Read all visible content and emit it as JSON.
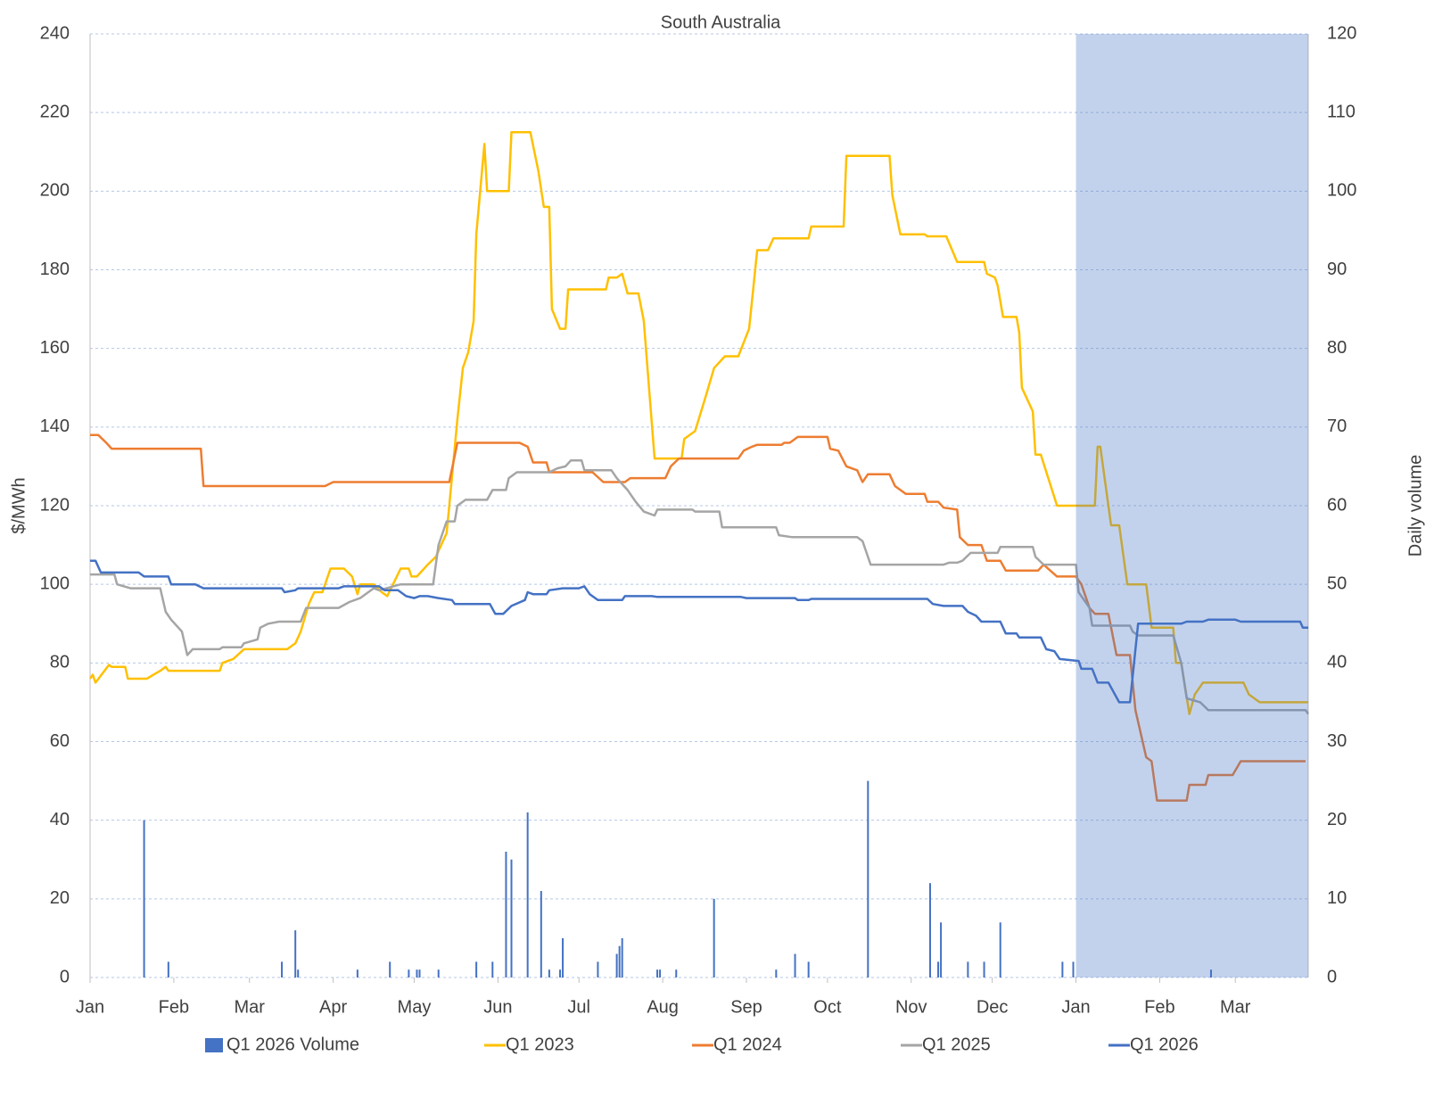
{
  "chart_data": {
    "type": "line",
    "title": "South Australia",
    "ylabel": "$/MWh",
    "y2label": "Daily volume",
    "xlim": [
      0,
      451
    ],
    "xticks": [
      {
        "value": 0,
        "label": "Jan"
      },
      {
        "value": 31,
        "label": "Feb"
      },
      {
        "value": 59,
        "label": "Mar"
      },
      {
        "value": 90,
        "label": "Apr"
      },
      {
        "value": 120,
        "label": "May"
      },
      {
        "value": 151,
        "label": "Jun"
      },
      {
        "value": 181,
        "label": "Jul"
      },
      {
        "value": 212,
        "label": "Aug"
      },
      {
        "value": 243,
        "label": "Sep"
      },
      {
        "value": 273,
        "label": "Oct"
      },
      {
        "value": 304,
        "label": "Nov"
      },
      {
        "value": 334,
        "label": "Dec"
      },
      {
        "value": 365,
        "label": "Jan"
      },
      {
        "value": 396,
        "label": "Feb"
      },
      {
        "value": 424,
        "label": "Mar"
      }
    ],
    "ylim": [
      0,
      240
    ],
    "yticks": [
      0,
      20,
      40,
      60,
      80,
      100,
      120,
      140,
      160,
      180,
      200,
      220,
      240
    ],
    "y2lim": [
      0,
      120
    ],
    "y2ticks": [
      0,
      10,
      20,
      30,
      40,
      50,
      60,
      70,
      80,
      90,
      100,
      110,
      120
    ],
    "grid": true,
    "legend": "bottom",
    "shaded_xrange": [
      365,
      451
    ],
    "shade_color": "#4472c4",
    "series": [
      {
        "name": "Q1 2026 Volume",
        "type": "bar",
        "axis": "y2",
        "color": "#4472c4",
        "x": [
          20,
          29,
          71,
          76,
          77,
          99,
          111,
          118,
          121,
          122,
          129,
          143,
          149,
          154,
          156,
          162,
          167,
          170,
          174,
          175,
          188,
          195,
          196,
          197,
          210,
          211,
          217,
          231,
          254,
          261,
          266,
          288,
          311,
          314,
          315,
          325,
          331,
          337,
          360,
          364,
          415
        ],
        "values": [
          20,
          2,
          2,
          6,
          1,
          1,
          2,
          1,
          1,
          1,
          1,
          2,
          2,
          16,
          15,
          21,
          11,
          1,
          1,
          5,
          2,
          3,
          4,
          5,
          1,
          1,
          1,
          10,
          1,
          3,
          2,
          25,
          12,
          2,
          7,
          2,
          2,
          7,
          2,
          2,
          1
        ]
      },
      {
        "name": "Q1 2023",
        "type": "line",
        "color": "#ffc000",
        "x": [
          0,
          1,
          2,
          7,
          8,
          13,
          14,
          21,
          26,
          28,
          29,
          48,
          49,
          53,
          57,
          73,
          76,
          78,
          81,
          83,
          86,
          89,
          94,
          97,
          99,
          100,
          105,
          108,
          110,
          115,
          118,
          119,
          121,
          125,
          128,
          132,
          133,
          136,
          138,
          140,
          142,
          143,
          146,
          147,
          155,
          156,
          163,
          166,
          168,
          170,
          171,
          174,
          176,
          177,
          191,
          192,
          195,
          197,
          199,
          203,
          205,
          209,
          211,
          219,
          220,
          224,
          228,
          231,
          235,
          240,
          244,
          247,
          251,
          253,
          266,
          267,
          279,
          280,
          288,
          289,
          296,
          297,
          300,
          309,
          310,
          317,
          321,
          331,
          332,
          335,
          336,
          338,
          343,
          344,
          345,
          349,
          350,
          352,
          358,
          372,
          373,
          374,
          378,
          381,
          384,
          391,
          393,
          401,
          402,
          404,
          407,
          409,
          412,
          427,
          429,
          433,
          451
        ],
        "values": [
          76,
          77,
          75,
          79.5,
          79,
          79,
          76,
          76,
          78,
          79,
          78,
          78,
          80,
          81,
          83.5,
          83.5,
          85,
          88,
          95,
          98,
          98,
          104,
          104,
          102,
          97.5,
          100,
          100,
          98,
          97,
          104,
          104,
          102,
          102,
          105,
          107,
          113,
          120,
          142,
          155,
          159,
          167,
          189,
          212,
          200,
          200,
          215,
          215,
          205,
          196,
          196,
          170,
          165,
          165,
          175,
          175,
          178,
          178,
          179,
          174,
          174,
          167,
          132,
          132,
          132,
          137,
          139,
          148,
          155,
          158,
          158,
          165,
          185,
          185,
          188,
          188,
          191,
          191,
          209,
          209,
          209,
          209,
          199,
          189,
          189,
          188.5,
          188.5,
          182,
          182,
          179,
          178,
          176,
          168,
          168,
          164,
          150,
          144,
          133,
          133,
          120,
          120,
          135,
          135,
          115,
          115,
          100,
          100,
          89,
          89,
          80,
          80,
          67,
          72,
          75,
          75,
          72,
          70,
          70
        ]
      },
      {
        "name": "Q1 2024",
        "type": "line",
        "color": "#ed7d31",
        "x": [
          0,
          3,
          6,
          8,
          41,
          42,
          87,
          90,
          133,
          136,
          159,
          162,
          164,
          169,
          170,
          186,
          190,
          198,
          200,
          213,
          215,
          218,
          240,
          242,
          245,
          247,
          256,
          257,
          259,
          262,
          273,
          274,
          277,
          280,
          284,
          286,
          288,
          296,
          298,
          302,
          309,
          310,
          314,
          316,
          321,
          322,
          325,
          330,
          332,
          337,
          339,
          351,
          353,
          358,
          365,
          367,
          370,
          372,
          377,
          380,
          385,
          387,
          391,
          393,
          395,
          406,
          407,
          413,
          414,
          423,
          426,
          450
        ],
        "values": [
          138,
          138,
          136,
          134.5,
          134.5,
          125,
          125,
          126,
          126,
          136,
          136,
          135,
          131,
          131,
          128.5,
          128.5,
          126,
          126,
          127,
          127,
          130,
          132,
          132,
          134,
          135,
          135.5,
          135.5,
          136,
          136,
          137.5,
          137.5,
          134.5,
          134,
          130,
          129,
          126,
          128,
          128,
          125,
          123,
          123,
          121,
          121,
          119.5,
          119,
          112,
          110,
          110,
          106,
          106,
          103.5,
          103.5,
          105,
          102,
          102,
          100,
          94,
          92.5,
          92.5,
          82,
          82,
          68,
          56,
          55,
          45,
          45,
          49,
          49,
          51.5,
          51.5,
          55,
          55
        ]
      },
      {
        "name": "Q1 2025",
        "type": "line",
        "color": "#a5a5a5",
        "x": [
          0,
          9,
          10,
          15,
          26,
          28,
          30,
          34,
          36,
          38,
          48,
          49,
          56,
          57,
          62,
          63,
          66,
          70,
          78,
          80,
          92,
          96,
          100,
          105,
          107,
          115,
          127,
          129,
          132,
          135,
          136,
          139,
          147,
          149,
          154,
          155,
          158,
          170,
          173,
          176,
          178,
          182,
          183,
          193,
          195,
          199,
          202,
          205,
          209,
          210,
          223,
          224,
          233,
          234,
          254,
          255,
          260,
          266,
          284,
          286,
          289,
          316,
          318,
          321,
          323,
          326,
          336,
          337,
          345,
          349,
          350,
          353,
          365,
          366,
          370,
          371,
          385,
          386,
          388,
          401,
          404,
          406,
          411,
          414,
          450,
          451
        ],
        "values": [
          102.5,
          102.5,
          100,
          99,
          99,
          93,
          91,
          88,
          82,
          83.5,
          83.5,
          84,
          84,
          85,
          86,
          89,
          90,
          90.5,
          90.5,
          94,
          94,
          95.5,
          96.5,
          99,
          98.5,
          100,
          100,
          110,
          116,
          116,
          120,
          121.5,
          121.5,
          124,
          124,
          127,
          128.5,
          128.5,
          129.5,
          130,
          131.5,
          131.5,
          129,
          129,
          127,
          124,
          121,
          118.5,
          117.5,
          119,
          119,
          118.5,
          118.5,
          114.5,
          114.5,
          112.5,
          112,
          112,
          112,
          111,
          105,
          105,
          105.5,
          105.5,
          106,
          108,
          108,
          109.5,
          109.5,
          109.5,
          107,
          105,
          105,
          98,
          94,
          89.5,
          89.5,
          88,
          87,
          87,
          80,
          71,
          70,
          68,
          68,
          67
        ]
      },
      {
        "name": "Q1 2026",
        "type": "line",
        "color": "#4472c4",
        "x": [
          0,
          2,
          4,
          18,
          20,
          29,
          30,
          39,
          42,
          71,
          72,
          76,
          77,
          92,
          94,
          107,
          109,
          114,
          117,
          120,
          122,
          125,
          129,
          134,
          135,
          148,
          150,
          153,
          156,
          161,
          162,
          164,
          169,
          170,
          175,
          181,
          183,
          185,
          188,
          197,
          198,
          208,
          210,
          241,
          243,
          261,
          262,
          266,
          267,
          310,
          312,
          316,
          323,
          325,
          328,
          330,
          337,
          339,
          343,
          344,
          352,
          354,
          357,
          359,
          366,
          367,
          371,
          373,
          377,
          381,
          385,
          388,
          404,
          406,
          412,
          414,
          424,
          426,
          448,
          449,
          451
        ],
        "values": [
          106,
          106,
          103,
          103,
          102,
          102,
          100,
          100,
          99,
          99,
          98,
          98.5,
          99,
          99,
          99.5,
          99.5,
          98.5,
          98.5,
          97,
          96.5,
          97,
          97,
          96.5,
          96,
          95,
          95,
          92.5,
          92.5,
          94.5,
          96,
          98,
          97.5,
          97.5,
          98.5,
          99,
          99,
          99.5,
          97.5,
          96,
          96,
          97,
          97,
          96.8,
          96.8,
          96.5,
          96.5,
          96,
          96,
          96.3,
          96.3,
          95,
          94.5,
          94.5,
          93,
          92,
          90.5,
          90.5,
          87.5,
          87.5,
          86.5,
          86.5,
          83.5,
          83,
          81,
          80.5,
          78.5,
          78.5,
          75,
          75,
          70,
          70,
          90,
          90,
          90.5,
          90.5,
          91,
          91,
          90.5,
          90.5,
          89,
          89
        ]
      }
    ]
  }
}
